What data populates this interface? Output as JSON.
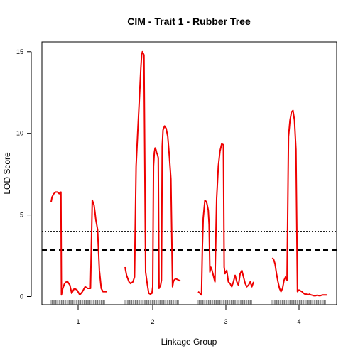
{
  "chart_data": {
    "type": "line",
    "title": "CIM - Trait 1 - Rubber Tree",
    "xlabel": "Linkage Group",
    "ylabel": "LOD Score",
    "ylim": [
      -0.5,
      15.6
    ],
    "yticks": [
      0,
      5,
      10,
      15
    ],
    "xticks": [
      "1",
      "2",
      "3",
      "4"
    ],
    "line_color": "#ee0000",
    "thresholds": [
      {
        "value": 4.0,
        "style": "dotted-thin"
      },
      {
        "value": 2.85,
        "style": "dashed-thick"
      }
    ],
    "groups": [
      {
        "label": "1",
        "x": [
          0.0,
          0.01,
          0.03,
          0.05,
          0.07,
          0.09,
          0.11,
          0.115,
          0.13,
          0.15,
          0.18,
          0.21,
          0.23,
          0.26,
          0.29,
          0.32,
          0.35,
          0.38,
          0.41,
          0.44,
          0.46,
          0.48,
          0.49,
          0.5,
          0.51,
          0.52,
          0.54,
          0.56,
          0.58,
          0.59,
          0.6,
          0.61,
          0.62
        ],
        "y": [
          5.8,
          6.1,
          6.3,
          6.4,
          6.4,
          6.3,
          6.4,
          0.1,
          0.5,
          0.8,
          0.95,
          0.7,
          0.2,
          0.5,
          0.4,
          0.1,
          0.3,
          0.6,
          0.5,
          0.5,
          5.9,
          5.6,
          5.2,
          4.7,
          4.4,
          4.1,
          1.6,
          0.5,
          0.3,
          0.3,
          0.3,
          0.3,
          0.3
        ]
      },
      {
        "label": "2",
        "x": [
          0.0,
          0.02,
          0.05,
          0.07,
          0.1,
          0.12,
          0.14,
          0.16,
          0.18,
          0.2,
          0.21,
          0.22,
          0.24,
          0.26,
          0.28,
          0.3,
          0.32,
          0.34,
          0.35,
          0.36,
          0.37,
          0.38,
          0.39,
          0.4,
          0.41,
          0.42,
          0.43,
          0.44,
          0.45,
          0.46,
          0.47,
          0.48,
          0.5,
          0.52,
          0.54,
          0.56,
          0.58,
          0.6,
          0.61,
          0.62,
          0.64,
          0.66,
          0.68,
          0.7
        ],
        "y": [
          1.8,
          1.3,
          0.9,
          0.8,
          0.9,
          1.2,
          8.0,
          10.0,
          12.0,
          14.0,
          14.8,
          15.0,
          14.8,
          1.5,
          0.8,
          0.2,
          0.15,
          0.2,
          0.6,
          8.0,
          8.8,
          9.1,
          9.0,
          8.8,
          8.7,
          8.5,
          0.5,
          0.6,
          0.7,
          1.0,
          9.2,
          10.2,
          10.45,
          10.3,
          9.8,
          8.6,
          7.2,
          0.6,
          0.9,
          1.0,
          1.1,
          1.05,
          1.0,
          0.95
        ]
      },
      {
        "label": "3",
        "x": [
          0.0,
          0.02,
          0.04,
          0.05,
          0.06,
          0.08,
          0.1,
          0.12,
          0.13,
          0.14,
          0.15,
          0.16,
          0.18,
          0.2,
          0.22,
          0.24,
          0.26,
          0.28,
          0.3,
          0.31,
          0.32,
          0.34,
          0.36,
          0.38,
          0.4,
          0.42,
          0.44,
          0.46,
          0.48,
          0.5,
          0.52,
          0.54,
          0.56,
          0.58,
          0.6,
          0.62,
          0.64,
          0.66
        ],
        "y": [
          0.3,
          0.2,
          0.1,
          3.0,
          4.8,
          5.9,
          5.8,
          5.3,
          4.4,
          1.5,
          1.8,
          1.7,
          1.3,
          0.9,
          6.0,
          8.0,
          8.9,
          9.35,
          9.3,
          1.8,
          1.4,
          1.6,
          0.9,
          0.8,
          0.6,
          0.9,
          1.3,
          0.9,
          0.7,
          1.4,
          1.6,
          1.2,
          0.8,
          0.6,
          0.7,
          0.9,
          0.6,
          0.9
        ]
      },
      {
        "label": "4",
        "x": [
          0.0,
          0.02,
          0.04,
          0.06,
          0.08,
          0.1,
          0.12,
          0.14,
          0.16,
          0.18,
          0.2,
          0.22,
          0.24,
          0.26,
          0.28,
          0.3,
          0.32,
          0.34,
          0.36,
          0.38,
          0.4,
          0.42,
          0.44,
          0.46,
          0.48,
          0.5,
          0.52,
          0.54,
          0.56,
          0.58,
          0.6,
          0.62,
          0.64,
          0.66,
          0.68,
          0.7,
          0.72,
          0.74
        ],
        "y": [
          2.35,
          2.3,
          2.0,
          1.4,
          0.9,
          0.5,
          0.3,
          0.5,
          1.0,
          1.2,
          1.0,
          9.8,
          10.8,
          11.3,
          11.4,
          10.8,
          9.0,
          0.3,
          0.4,
          0.35,
          0.3,
          0.2,
          0.15,
          0.15,
          0.1,
          0.15,
          0.1,
          0.08,
          0.05,
          0.05,
          0.08,
          0.06,
          0.05,
          0.08,
          0.1,
          0.1,
          0.1,
          0.1
        ]
      }
    ]
  }
}
